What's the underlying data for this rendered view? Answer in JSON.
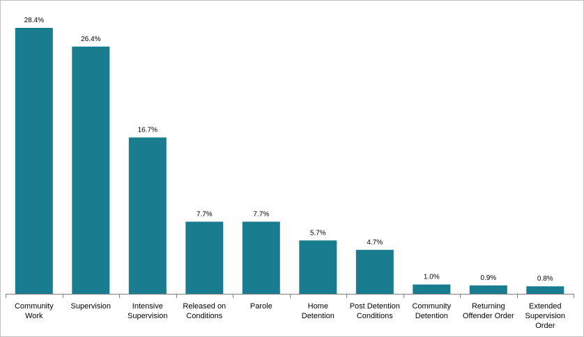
{
  "chart_data": {
    "type": "bar",
    "title": "",
    "xlabel": "",
    "ylabel": "",
    "ylim": [
      0,
      30
    ],
    "grid": false,
    "bar_color": "#1a7d8f",
    "categories": [
      [
        "Community",
        "Work"
      ],
      [
        "Supervision"
      ],
      [
        "Intensive",
        "Supervision"
      ],
      [
        "Released on",
        "Conditions"
      ],
      [
        "Parole"
      ],
      [
        "Home",
        "Detention"
      ],
      [
        "Post Detention",
        "Conditions"
      ],
      [
        "Community",
        "Detention"
      ],
      [
        "Returning",
        "Offender Order"
      ],
      [
        "Extended",
        "Supervision",
        "Order"
      ]
    ],
    "values": [
      28.4,
      26.4,
      16.7,
      7.7,
      7.7,
      5.7,
      4.7,
      1.0,
      0.9,
      0.8
    ],
    "value_labels": [
      "28.4%",
      "26.4%",
      "16.7%",
      "7.7%",
      "7.7%",
      "5.7%",
      "4.7%",
      "1.0%",
      "0.9%",
      "0.8%"
    ]
  }
}
